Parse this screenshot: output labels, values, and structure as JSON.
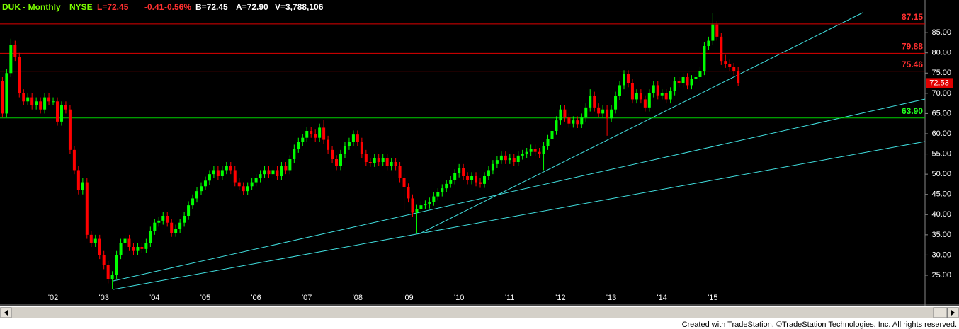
{
  "chart_data": {
    "type": "candlestick",
    "title": "DUK - Monthly",
    "exchange": "NYSE",
    "quote": [
      "L=72.45",
      "-0.41",
      "-0.56%"
    ],
    "details": [
      "B=72.45",
      "A=72.90",
      "V=3,788,106"
    ],
    "footer": "Created with TradeStation. ©TradeStation Technologies, Inc. All rights reserved.",
    "up_color": "#00ff00",
    "down_color": "#ff0000",
    "ylim": [
      18.7,
      92.2
    ],
    "yticks": [
      {
        "value": 25,
        "label": "25.00"
      },
      {
        "value": 30,
        "label": "30.00"
      },
      {
        "value": 35,
        "label": "35.00"
      },
      {
        "value": 40,
        "label": "40.00"
      },
      {
        "value": 45,
        "label": "45.00"
      },
      {
        "value": 50,
        "label": "50.00"
      },
      {
        "value": 55,
        "label": "55.00"
      },
      {
        "value": 60,
        "label": "60.00"
      },
      {
        "value": 65,
        "label": "65.00"
      },
      {
        "value": 70,
        "label": "70.00"
      },
      {
        "value": 75,
        "label": "75.00"
      },
      {
        "value": 80,
        "label": "80.00"
      },
      {
        "value": 85,
        "label": "85.00"
      }
    ],
    "levels": [
      {
        "value": 87.15,
        "color": "#e00000"
      },
      {
        "value": 79.88,
        "color": "#e00000"
      },
      {
        "value": 75.46,
        "color": "#e00000"
      },
      {
        "value": {
          "value": 63.9,
          "label": "63.90"
        },
        "color": "#00d000"
      }
    ],
    "last_marker": 72.53,
    "categories": [
      null,
      null,
      null,
      null,
      null,
      null,
      null,
      null,
      null,
      null,
      null,
      null,
      "'02",
      null,
      null,
      null,
      null,
      null,
      null,
      null,
      null,
      null,
      null,
      null,
      "'03",
      null,
      null,
      null,
      null,
      null,
      null,
      null,
      null,
      null,
      null,
      null,
      "'04",
      null,
      null,
      null,
      null,
      null,
      null,
      null,
      null,
      null,
      null,
      null,
      "'05",
      null,
      null,
      null,
      null,
      null,
      null,
      null,
      null,
      null,
      null,
      null,
      "'06",
      null,
      null,
      null,
      null,
      null,
      null,
      null,
      null,
      null,
      null,
      null,
      "'07",
      null,
      null,
      null,
      null,
      null,
      null,
      null,
      null,
      null,
      null,
      null,
      "'08",
      null,
      null,
      null,
      null,
      null,
      null,
      null,
      null,
      null,
      null,
      null,
      "'09",
      null,
      null,
      null,
      null,
      null,
      null,
      null,
      null,
      null,
      null,
      null,
      "'10",
      null,
      null,
      null,
      null,
      null,
      null,
      null,
      null,
      null,
      null,
      null,
      "'11",
      null,
      null,
      null,
      null,
      null,
      null,
      null,
      null,
      null,
      null,
      null,
      "'12",
      null,
      null,
      null,
      null,
      null,
      null,
      null,
      null,
      null,
      null,
      null,
      "'13",
      null,
      null,
      null,
      null,
      null,
      null,
      null,
      null,
      null,
      null,
      null,
      "'14",
      null,
      null,
      null,
      null,
      null,
      null,
      null,
      null,
      null,
      null,
      null,
      "'15",
      null,
      null,
      null,
      null,
      null,
      null
    ],
    "open": [
      73,
      65,
      75,
      82,
      79,
      70,
      68,
      69,
      67,
      68,
      66,
      69,
      68,
      68,
      63,
      67,
      66,
      56,
      51,
      46,
      48,
      35,
      33,
      34,
      30,
      27.5,
      24,
      25,
      30,
      33,
      34,
      32,
      31,
      32,
      31.5,
      33,
      36,
      38,
      38.5,
      39.7,
      38,
      35.5,
      36.5,
      38,
      39.7,
      42.3,
      44,
      45.8,
      47,
      48.4,
      50,
      51,
      49.5,
      51,
      52,
      51,
      48,
      47,
      45.8,
      47,
      48,
      49,
      50,
      51,
      50,
      51,
      49.5,
      52,
      51,
      53.7,
      56.3,
      58,
      59,
      60.7,
      60,
      59,
      61.5,
      58.5,
      56,
      53.7,
      52,
      55,
      57,
      58,
      59.8,
      58,
      55,
      53,
      52.8,
      54,
      53,
      54,
      52,
      53,
      52,
      49,
      46.7,
      44,
      40.5,
      41.4,
      42.3,
      42.5,
      43.2,
      44.5,
      45.5,
      46.5,
      47.6,
      48.5,
      50.2,
      51.5,
      49.5,
      48.5,
      49.5,
      48,
      47.6,
      49.5,
      51,
      52.5,
      53.5,
      54.6,
      53.5,
      54,
      53,
      54.6,
      55,
      55.5,
      56.3,
      55.5,
      55,
      57,
      58.7,
      60.7,
      63.3,
      66,
      64,
      62.5,
      63.3,
      62.4,
      64,
      66.5,
      69.4,
      66.5,
      65,
      66,
      63.8,
      66,
      69.4,
      72,
      74.7,
      72.5,
      68.5,
      70,
      68.5,
      66.5,
      70,
      72,
      69.5,
      70,
      68.5,
      70.5,
      73,
      72.5,
      74,
      72,
      73.5,
      74,
      75.5,
      81.7,
      83,
      87,
      84,
      78,
      77.3,
      76.5,
      75.5
    ],
    "high": [
      74,
      76,
      83.5,
      83,
      80,
      71,
      70,
      70,
      69,
      69,
      70,
      70,
      69,
      69,
      68,
      68,
      67,
      57,
      52,
      49,
      49,
      36,
      35,
      35,
      31,
      28.5,
      26,
      31,
      34,
      35,
      35,
      33,
      33,
      33,
      34,
      37,
      39,
      39.5,
      40.7,
      40.7,
      39,
      37.5,
      39,
      40.7,
      43.3,
      45,
      46.8,
      48,
      49.4,
      51,
      52,
      52,
      52,
      53,
      53,
      52,
      49,
      48,
      48,
      49,
      50,
      51,
      52,
      52,
      52,
      52,
      53,
      53,
      54.7,
      57.3,
      59,
      60,
      61.7,
      61.7,
      61,
      62.5,
      63.5,
      59.5,
      57,
      54.7,
      56,
      58,
      59,
      60.8,
      60.8,
      59,
      56,
      54,
      55,
      55,
      55,
      55,
      54,
      54,
      53,
      50,
      47.7,
      45,
      42.4,
      43.3,
      43.5,
      44.2,
      45.5,
      46.5,
      47.5,
      48.6,
      49.5,
      51.2,
      52.5,
      52.5,
      50.5,
      50.5,
      50.5,
      49,
      50.5,
      52,
      53.5,
      54.5,
      55.6,
      55.6,
      55,
      55,
      55.6,
      56,
      56.5,
      57.3,
      57.3,
      56.5,
      58,
      59.7,
      61.7,
      64.3,
      67,
      67,
      65,
      64.3,
      64.3,
      65,
      67.5,
      71,
      70.4,
      67.5,
      67,
      67,
      67,
      70.4,
      73,
      75.7,
      75.7,
      73.5,
      71,
      71,
      69.5,
      71,
      73,
      73,
      71,
      71,
      71.5,
      74,
      74,
      75,
      75,
      74.5,
      75,
      76.5,
      82.7,
      84,
      89.9,
      88,
      85,
      79.5,
      78.3,
      77.5,
      76.5
    ],
    "low": [
      64,
      64,
      74,
      78,
      69,
      67,
      67,
      66,
      66,
      65,
      65,
      67,
      67,
      62,
      62,
      65,
      55,
      50,
      45,
      45,
      34,
      32,
      32,
      29,
      26.5,
      23,
      21.5,
      24,
      29,
      32,
      31,
      30,
      30,
      30.5,
      30.5,
      32,
      35,
      37,
      37.5,
      37,
      34.5,
      34.5,
      35.5,
      37,
      38.7,
      41.3,
      43,
      44.8,
      46,
      47.4,
      49,
      48.5,
      48.5,
      50,
      50,
      47,
      46,
      44.8,
      44.8,
      46,
      47,
      48,
      49,
      49,
      49,
      48.5,
      48.5,
      50,
      50,
      52.7,
      55.3,
      57,
      58,
      59,
      58,
      58,
      57.5,
      55,
      52.7,
      51,
      51,
      54,
      56,
      57,
      57,
      54,
      52,
      51.8,
      51.8,
      52,
      52,
      51,
      51,
      51,
      48,
      41,
      43,
      39.5,
      35.3,
      40.4,
      41.3,
      41.5,
      42.2,
      43.5,
      44.5,
      45.5,
      46.6,
      47.5,
      49.2,
      48.5,
      47.5,
      47.5,
      47,
      46.6,
      46.6,
      48.5,
      50,
      51.5,
      52.5,
      52.5,
      52.5,
      52,
      52,
      53.6,
      54,
      54.5,
      54.5,
      54,
      51,
      56,
      57.7,
      59.7,
      62.3,
      63,
      61.5,
      61.5,
      61.4,
      61.4,
      63,
      65.5,
      65.5,
      64,
      64,
      59.5,
      62.8,
      65,
      68.4,
      71,
      71.5,
      67.5,
      67.5,
      67.5,
      65.5,
      65.5,
      69,
      68.5,
      68.5,
      67.5,
      67.5,
      69.5,
      71.5,
      71.5,
      71,
      71,
      72.5,
      73,
      74.5,
      80.7,
      82,
      83,
      77,
      76.3,
      75.5,
      74.5,
      71.8
    ],
    "close": [
      65,
      75,
      82,
      79,
      70,
      68,
      69,
      67,
      68,
      66,
      69,
      68,
      68,
      63,
      67,
      66,
      56,
      51,
      46,
      48,
      35,
      33,
      34,
      30,
      27.5,
      24,
      25,
      30,
      33,
      34,
      32,
      31,
      32,
      31.5,
      33,
      36,
      38,
      38.5,
      39.7,
      38,
      35.5,
      36.5,
      38,
      39.7,
      42.3,
      44,
      45.8,
      47,
      48.4,
      50,
      51,
      49.5,
      51,
      52,
      51,
      48,
      47,
      45.8,
      47,
      48,
      49,
      50,
      51,
      50,
      51,
      49.5,
      52,
      51,
      53.7,
      56.3,
      58,
      59,
      60.7,
      60,
      59,
      61.5,
      58.5,
      56,
      53.7,
      52,
      55,
      57,
      58,
      59.8,
      58,
      55,
      53,
      52.8,
      54,
      53,
      54,
      52,
      53,
      52,
      49,
      46.7,
      44,
      40.5,
      41.4,
      42.3,
      42.5,
      43.2,
      44.5,
      45.5,
      46.5,
      47.6,
      48.5,
      50.2,
      51.5,
      49.5,
      48.5,
      49.5,
      48,
      47.6,
      49.5,
      51,
      52.5,
      53.5,
      54.6,
      53.5,
      54,
      53,
      54.6,
      55,
      55.5,
      56.3,
      55.5,
      55,
      57,
      58.7,
      60.7,
      63.3,
      66,
      64,
      62.5,
      63.3,
      62.4,
      64,
      66.5,
      69.4,
      66.5,
      65,
      66,
      63.8,
      66,
      69.4,
      72,
      74.7,
      72.5,
      68.5,
      70,
      68.5,
      66.5,
      70,
      72,
      69.5,
      70,
      68.5,
      70.5,
      73,
      72.5,
      74,
      72,
      73.5,
      74,
      75.5,
      81.7,
      83,
      87,
      84,
      78,
      77.3,
      76.5,
      75.5,
      72.45
    ]
  }
}
